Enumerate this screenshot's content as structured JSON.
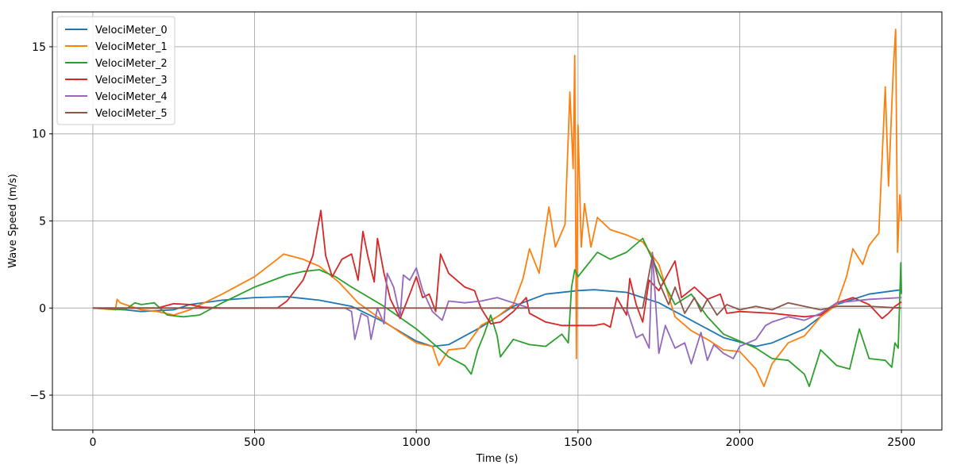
{
  "chart_data": {
    "type": "line",
    "xlabel": "Time (s)",
    "ylabel": "Wave Speed (m/s)",
    "xlim": [
      -125,
      2625
    ],
    "ylim": [
      -7,
      17
    ],
    "xticks": [
      0,
      500,
      1000,
      1500,
      2000,
      2500
    ],
    "yticks": [
      -5,
      0,
      5,
      10,
      15
    ],
    "grid": true,
    "legend_position": "top-left",
    "series": [
      {
        "name": "VelociMeter_0",
        "color": "#1f77b4",
        "points": [
          [
            0,
            0
          ],
          [
            100,
            -0.1
          ],
          [
            150,
            -0.2
          ],
          [
            250,
            -0.1
          ],
          [
            300,
            0.2
          ],
          [
            400,
            0.45
          ],
          [
            500,
            0.6
          ],
          [
            600,
            0.65
          ],
          [
            650,
            0.55
          ],
          [
            700,
            0.45
          ],
          [
            800,
            0.1
          ],
          [
            900,
            -0.8
          ],
          [
            1000,
            -1.9
          ],
          [
            1050,
            -2.2
          ],
          [
            1100,
            -2.1
          ],
          [
            1200,
            -1.1
          ],
          [
            1300,
            0.1
          ],
          [
            1400,
            0.8
          ],
          [
            1500,
            1.0
          ],
          [
            1550,
            1.05
          ],
          [
            1650,
            0.9
          ],
          [
            1750,
            0.3
          ],
          [
            1850,
            -0.7
          ],
          [
            1950,
            -1.7
          ],
          [
            2050,
            -2.2
          ],
          [
            2100,
            -2.0
          ],
          [
            2200,
            -1.2
          ],
          [
            2300,
            0.2
          ],
          [
            2400,
            0.8
          ],
          [
            2500,
            1.05
          ]
        ]
      },
      {
        "name": "VelociMeter_1",
        "color": "#ff7f0e",
        "points": [
          [
            0,
            0
          ],
          [
            70,
            -0.1
          ],
          [
            75,
            0.5
          ],
          [
            85,
            0.3
          ],
          [
            100,
            0.2
          ],
          [
            150,
            -0.1
          ],
          [
            200,
            -0.2
          ],
          [
            250,
            -0.4
          ],
          [
            300,
            -0.1
          ],
          [
            400,
            0.8
          ],
          [
            500,
            1.8
          ],
          [
            570,
            2.8
          ],
          [
            590,
            3.1
          ],
          [
            650,
            2.8
          ],
          [
            700,
            2.4
          ],
          [
            760,
            1.5
          ],
          [
            820,
            0.3
          ],
          [
            880,
            -0.5
          ],
          [
            950,
            -1.4
          ],
          [
            1000,
            -2.0
          ],
          [
            1050,
            -2.2
          ],
          [
            1070,
            -3.3
          ],
          [
            1100,
            -2.4
          ],
          [
            1150,
            -2.3
          ],
          [
            1200,
            -1.0
          ],
          [
            1250,
            -0.5
          ],
          [
            1300,
            0.2
          ],
          [
            1330,
            1.7
          ],
          [
            1350,
            3.4
          ],
          [
            1380,
            2.0
          ],
          [
            1410,
            5.8
          ],
          [
            1430,
            3.5
          ],
          [
            1460,
            4.8
          ],
          [
            1475,
            12.4
          ],
          [
            1485,
            8.0
          ],
          [
            1490,
            14.5
          ],
          [
            1495,
            -2.9
          ],
          [
            1500,
            10.5
          ],
          [
            1510,
            3.5
          ],
          [
            1520,
            6.0
          ],
          [
            1540,
            3.5
          ],
          [
            1560,
            5.2
          ],
          [
            1600,
            4.5
          ],
          [
            1650,
            4.2
          ],
          [
            1700,
            3.8
          ],
          [
            1750,
            2.5
          ],
          [
            1800,
            -0.5
          ],
          [
            1850,
            -1.3
          ],
          [
            1900,
            -1.8
          ],
          [
            1950,
            -2.4
          ],
          [
            2000,
            -2.5
          ],
          [
            2050,
            -3.5
          ],
          [
            2075,
            -4.5
          ],
          [
            2100,
            -3.2
          ],
          [
            2150,
            -2.0
          ],
          [
            2200,
            -1.6
          ],
          [
            2250,
            -0.5
          ],
          [
            2300,
            0.2
          ],
          [
            2330,
            1.8
          ],
          [
            2350,
            3.4
          ],
          [
            2380,
            2.5
          ],
          [
            2400,
            3.6
          ],
          [
            2430,
            4.3
          ],
          [
            2450,
            12.7
          ],
          [
            2460,
            7.0
          ],
          [
            2475,
            13.8
          ],
          [
            2482,
            16.0
          ],
          [
            2488,
            3.2
          ],
          [
            2495,
            6.5
          ],
          [
            2500,
            5.0
          ]
        ]
      },
      {
        "name": "VelociMeter_2",
        "color": "#2ca02c",
        "points": [
          [
            0,
            0
          ],
          [
            100,
            -0.1
          ],
          [
            130,
            0.3
          ],
          [
            150,
            0.2
          ],
          [
            190,
            0.3
          ],
          [
            230,
            -0.4
          ],
          [
            280,
            -0.5
          ],
          [
            330,
            -0.4
          ],
          [
            400,
            0.3
          ],
          [
            500,
            1.2
          ],
          [
            600,
            1.9
          ],
          [
            650,
            2.1
          ],
          [
            700,
            2.2
          ],
          [
            750,
            1.8
          ],
          [
            800,
            1.2
          ],
          [
            900,
            0.1
          ],
          [
            1000,
            -1.2
          ],
          [
            1100,
            -2.8
          ],
          [
            1150,
            -3.3
          ],
          [
            1170,
            -3.8
          ],
          [
            1190,
            -2.4
          ],
          [
            1210,
            -1.5
          ],
          [
            1230,
            -0.4
          ],
          [
            1250,
            -1.6
          ],
          [
            1260,
            -2.8
          ],
          [
            1300,
            -1.8
          ],
          [
            1350,
            -2.1
          ],
          [
            1400,
            -2.2
          ],
          [
            1450,
            -1.5
          ],
          [
            1470,
            -2.0
          ],
          [
            1480,
            1.2
          ],
          [
            1490,
            2.2
          ],
          [
            1500,
            1.8
          ],
          [
            1530,
            2.5
          ],
          [
            1560,
            3.2
          ],
          [
            1600,
            2.8
          ],
          [
            1650,
            3.2
          ],
          [
            1700,
            4.0
          ],
          [
            1750,
            2.0
          ],
          [
            1800,
            0.2
          ],
          [
            1850,
            0.8
          ],
          [
            1900,
            -0.5
          ],
          [
            1950,
            -1.5
          ],
          [
            2000,
            -1.9
          ],
          [
            2050,
            -2.3
          ],
          [
            2100,
            -2.9
          ],
          [
            2150,
            -3.0
          ],
          [
            2200,
            -3.8
          ],
          [
            2215,
            -4.5
          ],
          [
            2250,
            -2.4
          ],
          [
            2300,
            -3.3
          ],
          [
            2340,
            -3.5
          ],
          [
            2370,
            -1.2
          ],
          [
            2400,
            -2.9
          ],
          [
            2450,
            -3.0
          ],
          [
            2470,
            -3.4
          ],
          [
            2480,
            -2.0
          ],
          [
            2490,
            -2.3
          ],
          [
            2498,
            2.6
          ],
          [
            2500,
            0.8
          ]
        ]
      },
      {
        "name": "VelociMeter_3",
        "color": "#d62728",
        "points": [
          [
            0,
            0
          ],
          [
            200,
            0
          ],
          [
            250,
            0.25
          ],
          [
            300,
            0.2
          ],
          [
            340,
            0.05
          ],
          [
            400,
            0
          ],
          [
            570,
            0
          ],
          [
            600,
            0.4
          ],
          [
            650,
            1.6
          ],
          [
            680,
            3.0
          ],
          [
            705,
            5.6
          ],
          [
            720,
            3.0
          ],
          [
            740,
            1.8
          ],
          [
            770,
            2.8
          ],
          [
            800,
            3.1
          ],
          [
            820,
            1.6
          ],
          [
            835,
            4.4
          ],
          [
            850,
            3.0
          ],
          [
            870,
            1.5
          ],
          [
            880,
            4.0
          ],
          [
            900,
            2.0
          ],
          [
            920,
            0.5
          ],
          [
            950,
            -0.6
          ],
          [
            980,
            0.8
          ],
          [
            1000,
            1.8
          ],
          [
            1020,
            0.6
          ],
          [
            1040,
            0.8
          ],
          [
            1060,
            -0.2
          ],
          [
            1075,
            3.1
          ],
          [
            1100,
            2.0
          ],
          [
            1150,
            1.2
          ],
          [
            1180,
            1.0
          ],
          [
            1200,
            0.0
          ],
          [
            1230,
            -0.9
          ],
          [
            1260,
            -0.8
          ],
          [
            1300,
            -0.2
          ],
          [
            1340,
            0.6
          ],
          [
            1350,
            -0.3
          ],
          [
            1400,
            -0.8
          ],
          [
            1450,
            -1.0
          ],
          [
            1500,
            -1.0
          ],
          [
            1550,
            -1.0
          ],
          [
            1580,
            -0.9
          ],
          [
            1600,
            -1.1
          ],
          [
            1620,
            0.6
          ],
          [
            1650,
            -0.4
          ],
          [
            1660,
            1.7
          ],
          [
            1680,
            0.2
          ],
          [
            1700,
            -0.8
          ],
          [
            1720,
            1.6
          ],
          [
            1750,
            1.0
          ],
          [
            1800,
            2.7
          ],
          [
            1820,
            0.6
          ],
          [
            1860,
            1.2
          ],
          [
            1900,
            0.5
          ],
          [
            1940,
            0.8
          ],
          [
            1960,
            -0.3
          ],
          [
            2000,
            -0.2
          ],
          [
            2100,
            -0.3
          ],
          [
            2200,
            -0.5
          ],
          [
            2250,
            -0.4
          ],
          [
            2300,
            0.3
          ],
          [
            2350,
            0.6
          ],
          [
            2400,
            0.2
          ],
          [
            2440,
            -0.6
          ],
          [
            2460,
            -0.3
          ],
          [
            2480,
            0.1
          ],
          [
            2500,
            0.35
          ]
        ]
      },
      {
        "name": "VelociMeter_4",
        "color": "#9467bd",
        "points": [
          [
            0,
            0
          ],
          [
            780,
            0
          ],
          [
            800,
            -0.2
          ],
          [
            810,
            -1.8
          ],
          [
            830,
            -0.3
          ],
          [
            850,
            -0.5
          ],
          [
            860,
            -1.8
          ],
          [
            880,
            0.0
          ],
          [
            900,
            -0.9
          ],
          [
            910,
            2.0
          ],
          [
            930,
            1.2
          ],
          [
            950,
            -0.5
          ],
          [
            960,
            1.9
          ],
          [
            980,
            1.6
          ],
          [
            1000,
            2.3
          ],
          [
            1020,
            1.0
          ],
          [
            1050,
            -0.2
          ],
          [
            1080,
            -0.7
          ],
          [
            1100,
            0.4
          ],
          [
            1150,
            0.3
          ],
          [
            1200,
            0.4
          ],
          [
            1250,
            0.6
          ],
          [
            1300,
            0.3
          ],
          [
            1350,
            0.0
          ],
          [
            1400,
            0.0
          ],
          [
            1650,
            0.0
          ],
          [
            1680,
            -1.7
          ],
          [
            1700,
            -1.5
          ],
          [
            1720,
            -2.3
          ],
          [
            1730,
            3.2
          ],
          [
            1750,
            -2.6
          ],
          [
            1770,
            -1.0
          ],
          [
            1800,
            -2.3
          ],
          [
            1830,
            -2.0
          ],
          [
            1850,
            -3.2
          ],
          [
            1880,
            -1.4
          ],
          [
            1900,
            -3.0
          ],
          [
            1920,
            -2.1
          ],
          [
            1950,
            -2.6
          ],
          [
            1980,
            -2.9
          ],
          [
            2000,
            -2.2
          ],
          [
            2050,
            -1.8
          ],
          [
            2080,
            -1.0
          ],
          [
            2100,
            -0.8
          ],
          [
            2150,
            -0.5
          ],
          [
            2200,
            -0.7
          ],
          [
            2250,
            -0.3
          ],
          [
            2300,
            0.3
          ],
          [
            2400,
            0.5
          ],
          [
            2500,
            0.6
          ]
        ]
      },
      {
        "name": "VelociMeter_5",
        "color": "#8c564b",
        "points": [
          [
            0,
            0
          ],
          [
            1700,
            0
          ],
          [
            1730,
            3.0
          ],
          [
            1750,
            1.5
          ],
          [
            1780,
            0.2
          ],
          [
            1800,
            1.2
          ],
          [
            1830,
            -0.3
          ],
          [
            1860,
            0.6
          ],
          [
            1880,
            -0.2
          ],
          [
            1900,
            0.5
          ],
          [
            1930,
            -0.4
          ],
          [
            1960,
            0.2
          ],
          [
            2000,
            -0.1
          ],
          [
            2050,
            0.1
          ],
          [
            2100,
            -0.1
          ],
          [
            2150,
            0.3
          ],
          [
            2200,
            0.1
          ],
          [
            2250,
            -0.1
          ],
          [
            2300,
            0.1
          ],
          [
            2400,
            0.1
          ],
          [
            2500,
            0.0
          ]
        ]
      }
    ]
  }
}
